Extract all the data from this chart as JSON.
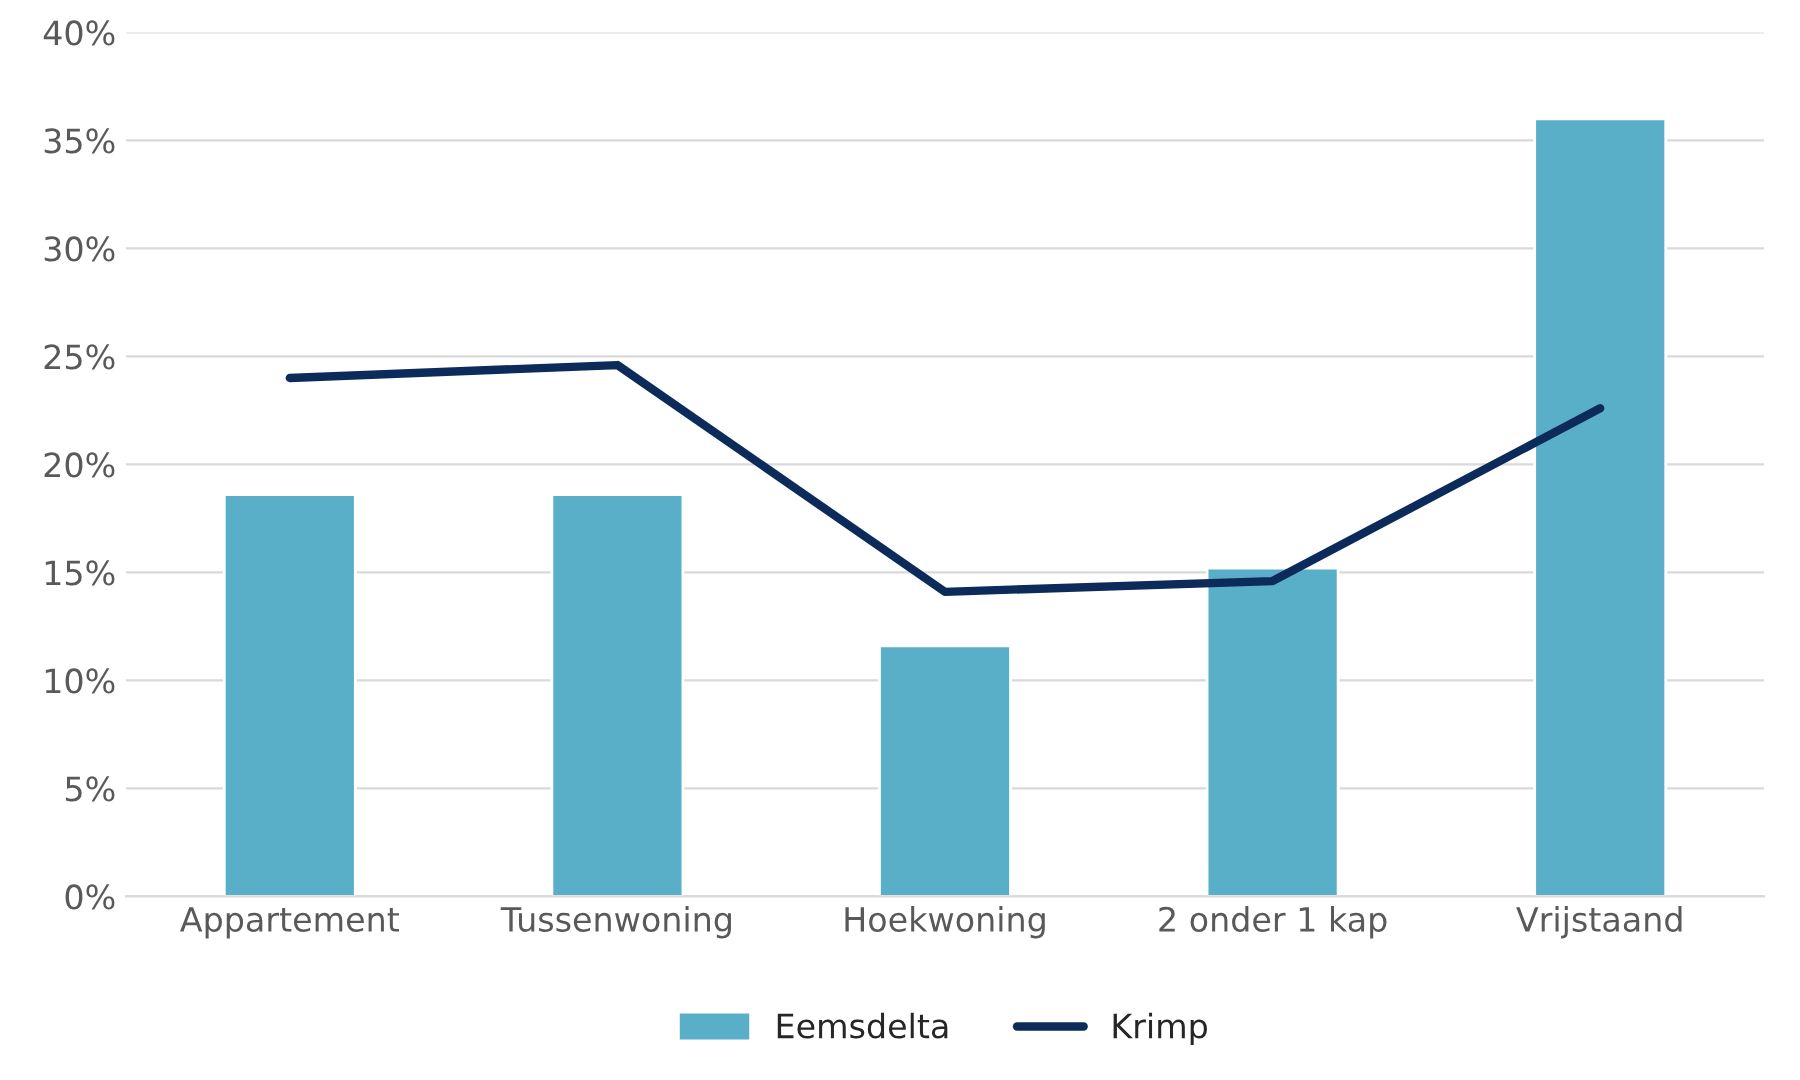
{
  "chart_data": {
    "type": "bar",
    "categories": [
      "Appartement",
      "Tussenwoning",
      "Hoekwoning",
      "2 onder 1 kap",
      "Vrijstaand"
    ],
    "series": [
      {
        "name": "Eemsdelta",
        "color": "#5aafc8",
        "values": [
          18.6,
          18.6,
          11.6,
          15.2,
          36.0
        ]
      },
      {
        "name": "Krimp",
        "type": "line",
        "color": "#0d2b5a",
        "values": [
          24.0,
          24.6,
          14.1,
          14.6,
          22.6
        ]
      }
    ],
    "ylim": [
      0,
      40
    ],
    "yticks": [
      {
        "value": 0,
        "label": "0%"
      },
      {
        "value": 5,
        "label": "5%"
      },
      {
        "value": 10,
        "label": "10%"
      },
      {
        "value": 15,
        "label": "15%"
      },
      {
        "value": 20,
        "label": "20%"
      },
      {
        "value": 25,
        "label": "25%"
      },
      {
        "value": 30,
        "label": "30%"
      },
      {
        "value": 35,
        "label": "35%"
      },
      {
        "value": 40,
        "label": "40%"
      }
    ],
    "grid": "y",
    "legend": "bottom",
    "marker": "none",
    "line_style": "solid"
  }
}
